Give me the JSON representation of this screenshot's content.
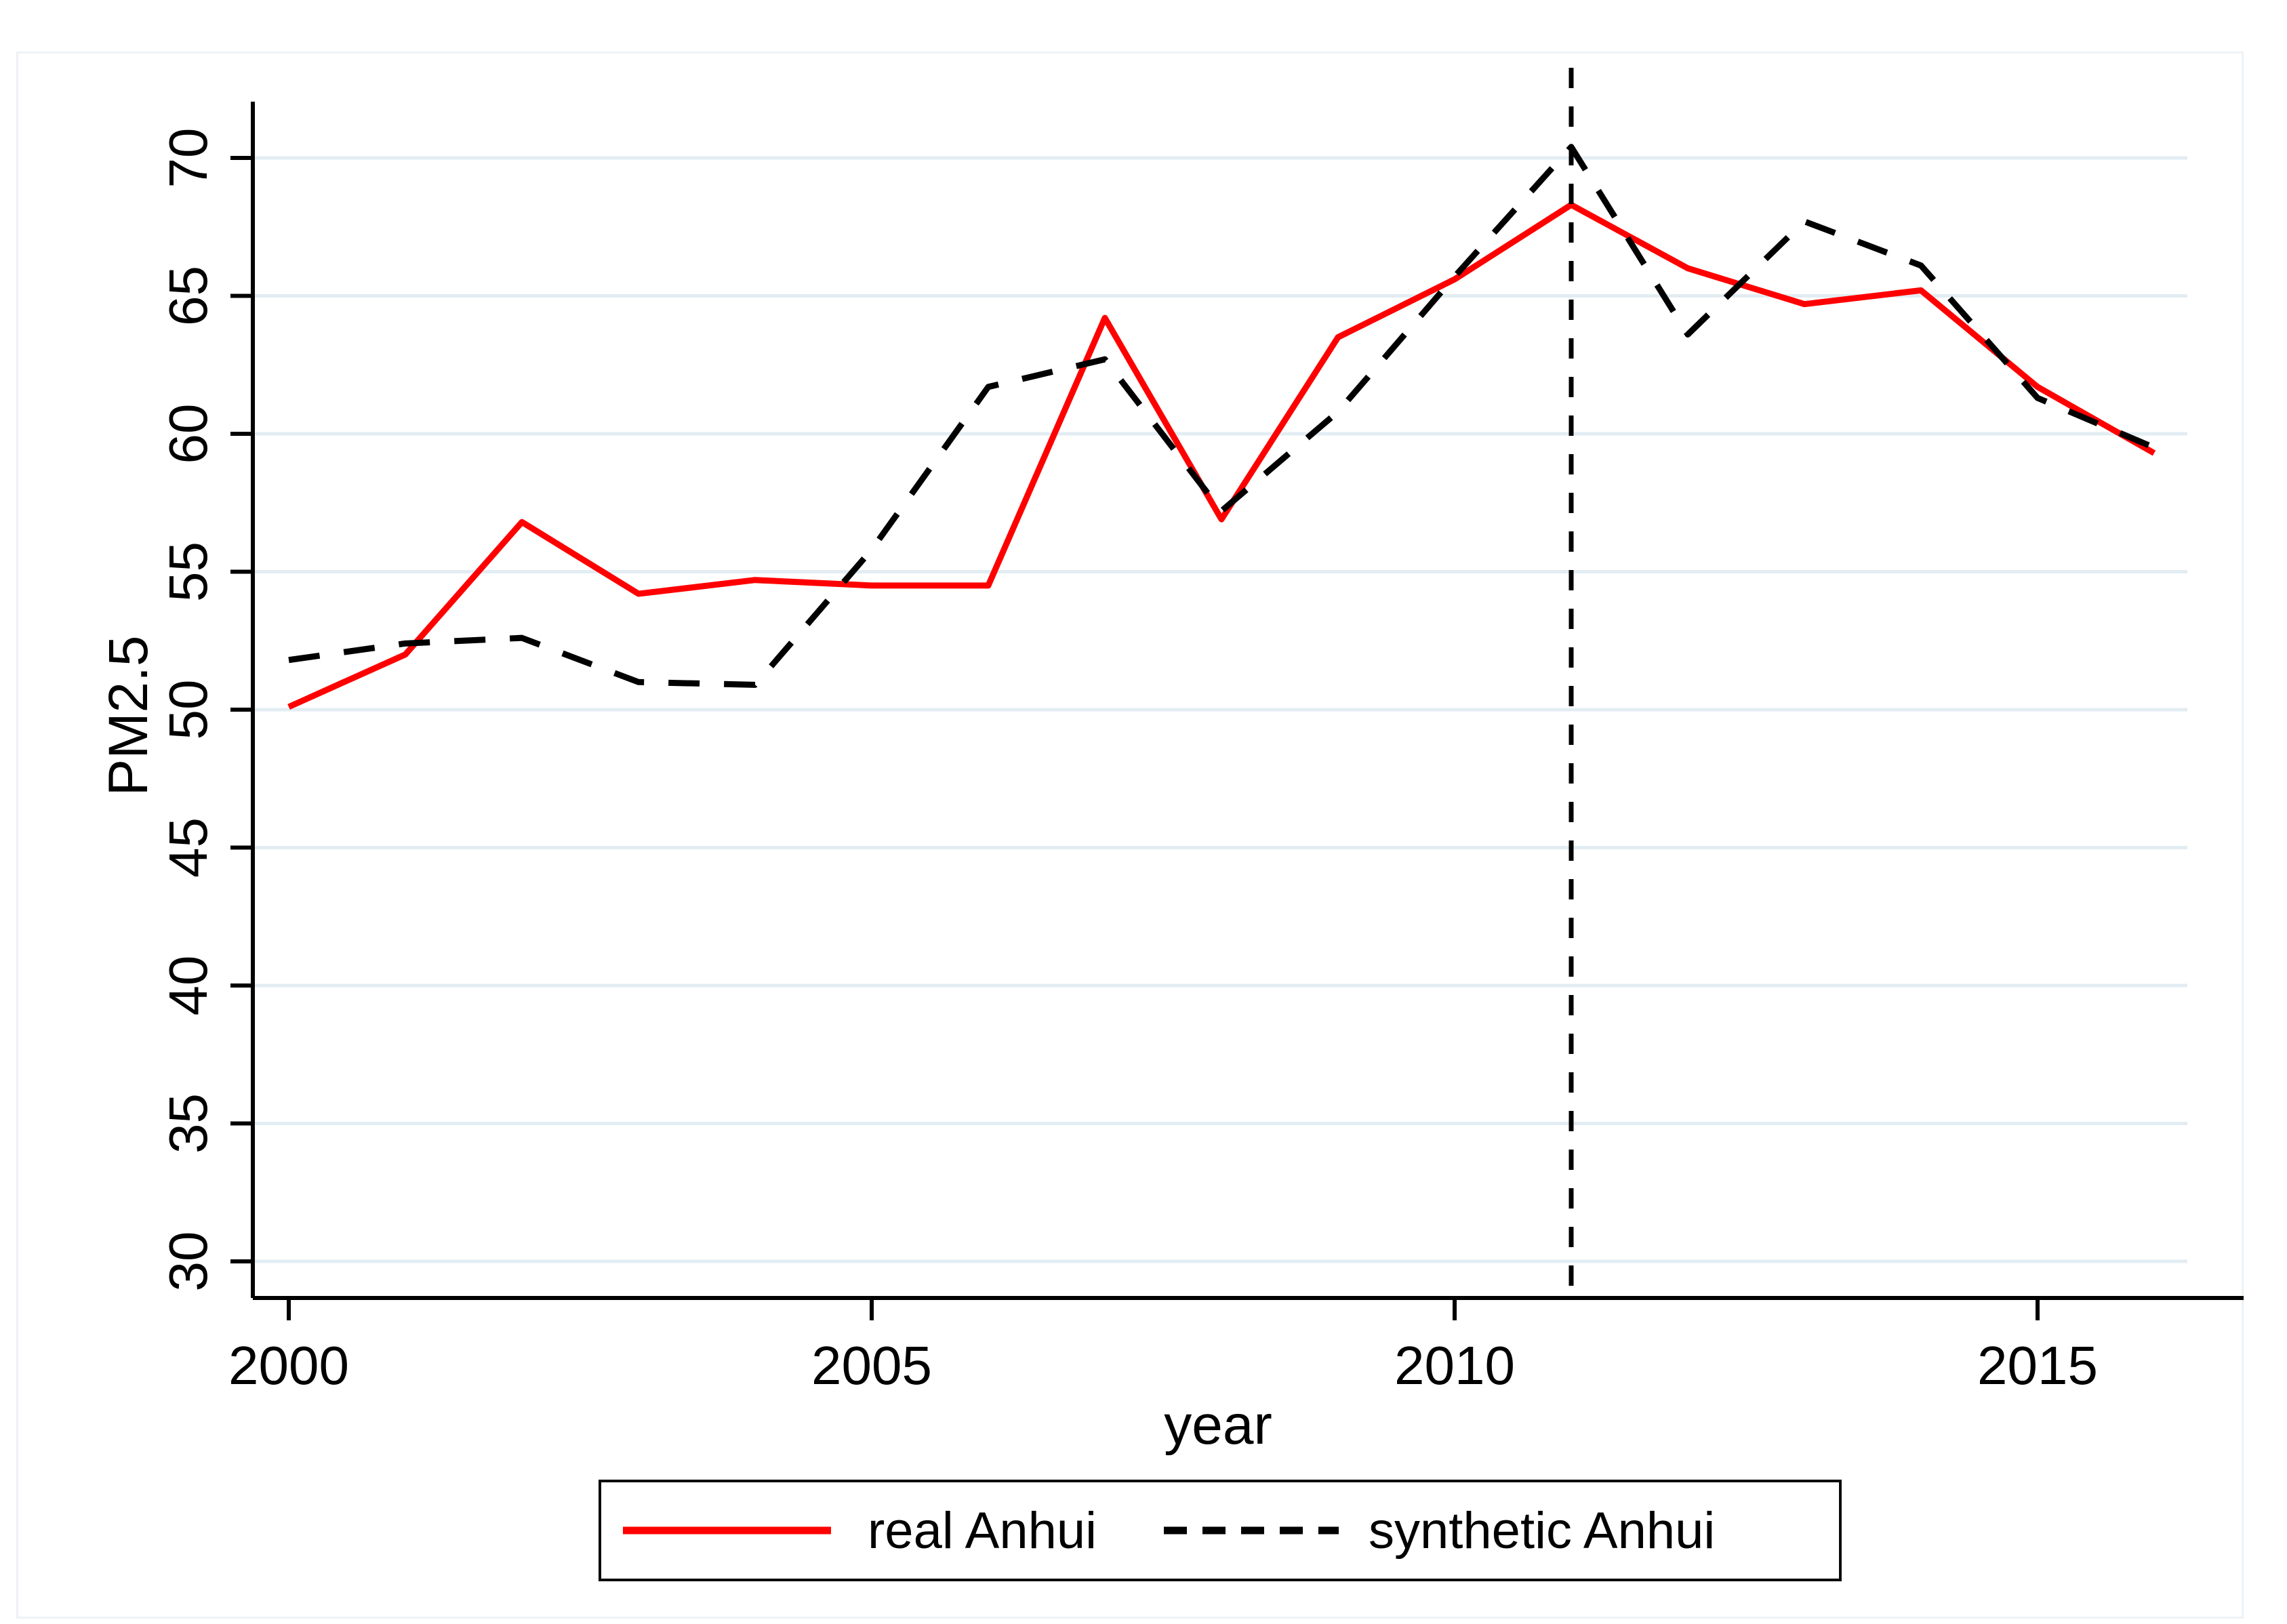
{
  "chart_data": {
    "type": "line",
    "title": "",
    "xlabel": "year",
    "ylabel": "PM2.5",
    "x": [
      2000,
      2001,
      2002,
      2003,
      2004,
      2005,
      2006,
      2007,
      2008,
      2009,
      2010,
      2011,
      2012,
      2013,
      2014,
      2015,
      2016
    ],
    "series": [
      {
        "name": "real Anhui",
        "style": "solid",
        "color": "#ff0000",
        "values": [
          50.1,
          52.0,
          56.8,
          54.2,
          54.7,
          54.5,
          54.5,
          64.2,
          56.9,
          63.5,
          65.6,
          68.3,
          66.0,
          64.7,
          65.2,
          61.7,
          59.3
        ]
      },
      {
        "name": "synthetic Anhui",
        "style": "dashed",
        "color": "#000000",
        "values": [
          51.8,
          52.4,
          52.6,
          51.0,
          50.9,
          55.8,
          61.7,
          62.7,
          57.2,
          60.8,
          65.7,
          70.4,
          63.6,
          67.7,
          66.1,
          61.3,
          59.5
        ]
      }
    ],
    "ylim": [
      30,
      70
    ],
    "yticks": [
      30,
      35,
      40,
      45,
      50,
      55,
      60,
      65,
      70
    ],
    "xticks": [
      2000,
      2005,
      2010,
      2015
    ],
    "vline_x": 2011,
    "grid": "horizontal",
    "grid_color": "#e2edf3",
    "axis_color": "#000000",
    "legend_position": "bottom"
  }
}
